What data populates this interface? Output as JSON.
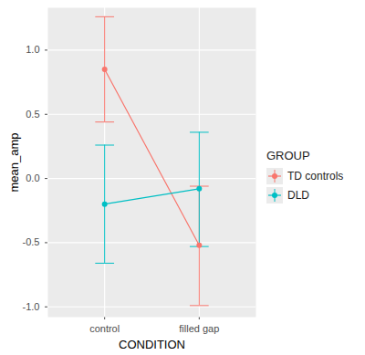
{
  "chart_data": {
    "type": "line",
    "x_label": "CONDITION",
    "y_label": "mean_amp",
    "legend_title": "GROUP",
    "categories": [
      "control",
      "filled gap"
    ],
    "ylim": [
      -1.08,
      1.33
    ],
    "yticks": [
      {
        "value": -1.0,
        "label": "-1.0"
      },
      {
        "value": -0.5,
        "label": "-0.5"
      },
      {
        "value": 0.0,
        "label": "0.0"
      },
      {
        "value": 0.5,
        "label": "0.5"
      },
      {
        "value": 1.0,
        "label": "1.0"
      }
    ],
    "grid": true,
    "legend": "right",
    "series": [
      {
        "name": "TD controls",
        "color": "#F8766D",
        "marker": "circle",
        "values": [
          0.85,
          -0.52
        ],
        "error_low": [
          0.44,
          -0.99
        ],
        "error_high": [
          1.26,
          -0.06
        ]
      },
      {
        "name": "DLD",
        "color": "#00BFC4",
        "marker": "circle",
        "values": [
          -0.2,
          -0.08
        ],
        "error_low": [
          -0.66,
          -0.53
        ],
        "error_high": [
          0.26,
          0.36
        ]
      }
    ]
  }
}
